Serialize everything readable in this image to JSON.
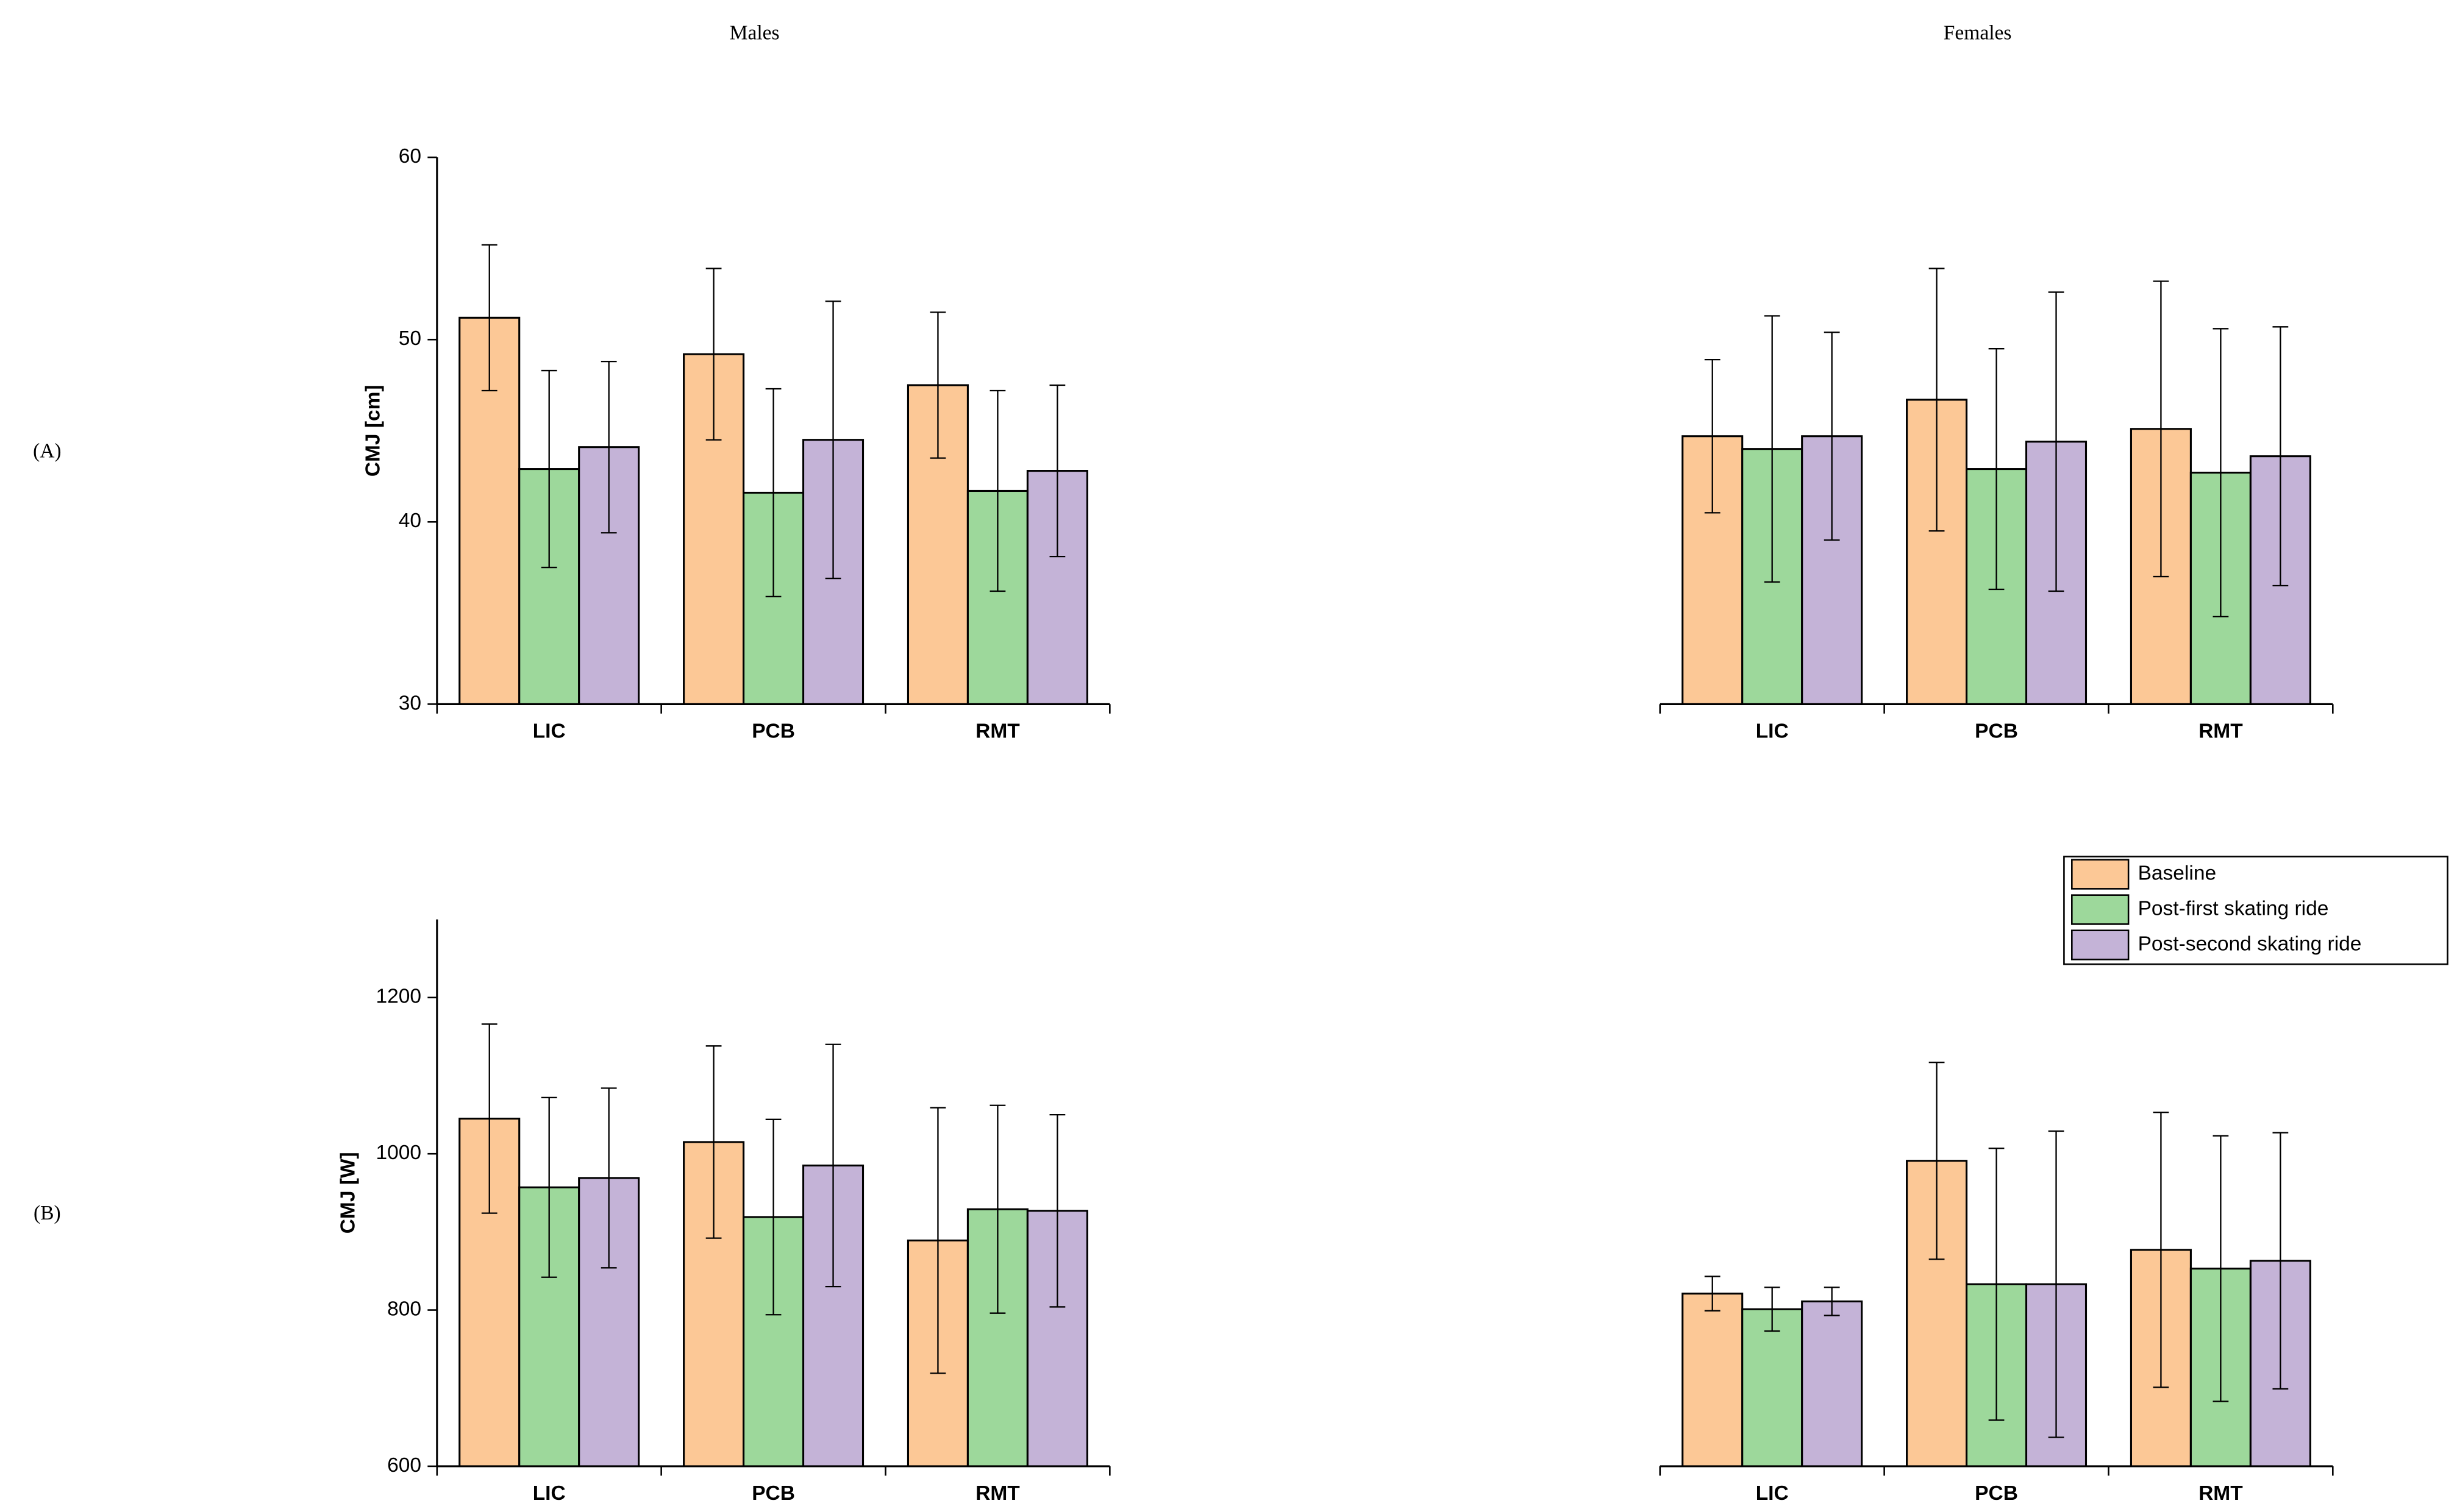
{
  "chart_data": [
    {
      "type": "bar",
      "title": "Males",
      "panel_label": "(A)",
      "ylabel": "CMJ [cm]",
      "categories": [
        "LIC",
        "PCB",
        "RMT"
      ],
      "series": [
        {
          "color": "#fcc896",
          "values": [
            51.2,
            49.2,
            47.5
          ],
          "errors": [
            4.0,
            4.7,
            4.0
          ]
        },
        {
          "color": "#9dd89b",
          "values": [
            42.9,
            41.6,
            41.7
          ],
          "errors": [
            5.4,
            5.7,
            5.5
          ]
        },
        {
          "color": "#c4b3d7",
          "values": [
            44.1,
            44.5,
            42.8
          ],
          "errors": [
            4.7,
            7.6,
            4.7
          ]
        }
      ],
      "ylim": [
        30,
        60
      ],
      "yticks": [
        30,
        40,
        50,
        60
      ]
    },
    {
      "type": "bar",
      "title": "Females",
      "categories": [
        "LIC",
        "PCB",
        "RMT"
      ],
      "series": [
        {
          "color": "#fcc896",
          "values": [
            44.7,
            46.7,
            45.1
          ],
          "errors": [
            4.2,
            7.2,
            8.1
          ]
        },
        {
          "color": "#9dd89b",
          "values": [
            44.0,
            42.9,
            42.7
          ],
          "errors": [
            7.3,
            6.6,
            7.9
          ]
        },
        {
          "color": "#c4b3d7",
          "values": [
            44.7,
            44.4,
            43.6
          ],
          "errors": [
            5.7,
            8.2,
            7.1
          ]
        }
      ],
      "ylim": [
        30,
        60
      ]
    },
    {
      "type": "bar",
      "panel_label": "(B)",
      "ylabel": "CMJ [W]",
      "categories": [
        "LIC",
        "PCB",
        "RMT"
      ],
      "series": [
        {
          "color": "#fcc896",
          "values": [
            1045,
            1015,
            889
          ],
          "errors": [
            121,
            123,
            170
          ]
        },
        {
          "color": "#9dd89b",
          "values": [
            957,
            919,
            929
          ],
          "errors": [
            115,
            125,
            133
          ]
        },
        {
          "color": "#c4b3d7",
          "values": [
            969,
            985,
            927
          ],
          "errors": [
            115,
            155,
            123
          ]
        }
      ],
      "ylim": [
        600,
        1300
      ],
      "yticks": [
        600,
        800,
        1000,
        1200
      ]
    },
    {
      "type": "bar",
      "categories": [
        "LIC",
        "PCB",
        "RMT"
      ],
      "series": [
        {
          "name": "Baseline",
          "color": "#fcc896",
          "values": [
            821,
            991,
            877
          ],
          "errors": [
            22,
            126,
            176
          ]
        },
        {
          "name": "Post-first skating ride",
          "color": "#9dd89b",
          "values": [
            801,
            833,
            853
          ],
          "errors": [
            28,
            174,
            170
          ]
        },
        {
          "name": "Post-second skating ride",
          "color": "#c4b3d7",
          "values": [
            811,
            833,
            863
          ],
          "errors": [
            18,
            196,
            164
          ]
        }
      ],
      "ylim": [
        600,
        1300
      ],
      "legend": true
    }
  ]
}
